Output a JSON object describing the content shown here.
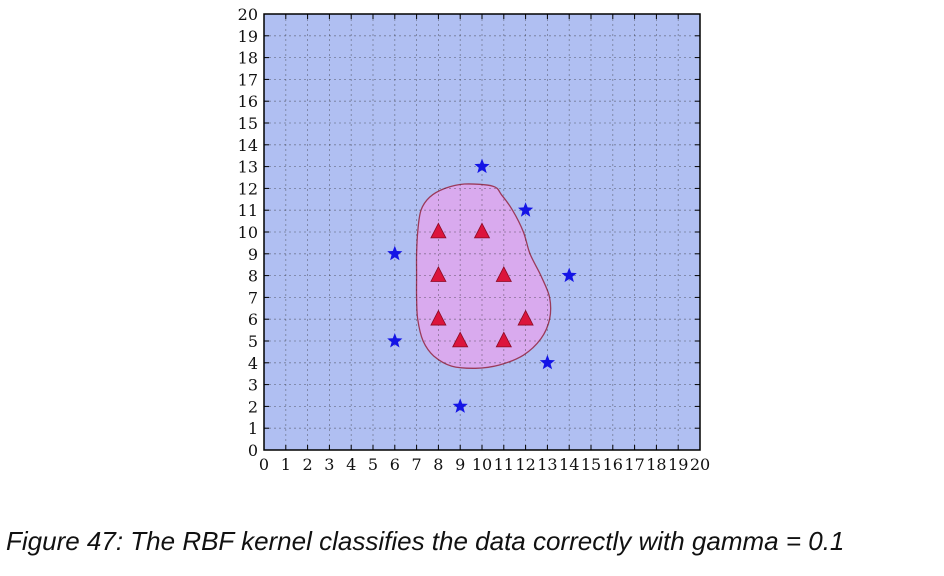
{
  "chart_data": {
    "type": "scatter",
    "title": "",
    "xlabel": "",
    "ylabel": "",
    "xlim": [
      0,
      20
    ],
    "ylim": [
      0,
      20
    ],
    "x_ticks": [
      "0",
      "1",
      "2",
      "3",
      "4",
      "5",
      "6",
      "7",
      "8",
      "9",
      "10",
      "11",
      "12",
      "13",
      "14",
      "15",
      "16",
      "17",
      "18",
      "19",
      "20"
    ],
    "y_ticks": [
      "0",
      "1",
      "2",
      "3",
      "4",
      "5",
      "6",
      "7",
      "8",
      "9",
      "10",
      "11",
      "12",
      "13",
      "14",
      "15",
      "16",
      "17",
      "18",
      "19",
      "20"
    ],
    "grid": true,
    "background_color": "#b0bff2",
    "decision_region": {
      "fill_color": "#d9aaee",
      "edge_color": "#9b3a5a",
      "boundary": [
        [
          10.5,
          12.1
        ],
        [
          9.2,
          12.2
        ],
        [
          8.3,
          12.0
        ],
        [
          7.6,
          11.6
        ],
        [
          7.2,
          11.0
        ],
        [
          7.05,
          10.0
        ],
        [
          7.0,
          9.0
        ],
        [
          7.0,
          8.0
        ],
        [
          7.0,
          7.0
        ],
        [
          7.05,
          6.0
        ],
        [
          7.3,
          5.0
        ],
        [
          7.8,
          4.3
        ],
        [
          8.6,
          3.85
        ],
        [
          9.7,
          3.75
        ],
        [
          10.8,
          3.9
        ],
        [
          11.9,
          4.35
        ],
        [
          12.7,
          5.1
        ],
        [
          13.1,
          6.0
        ],
        [
          13.1,
          7.0
        ],
        [
          12.7,
          8.0
        ],
        [
          12.2,
          9.0
        ],
        [
          11.9,
          10.0
        ],
        [
          11.4,
          11.0
        ],
        [
          10.9,
          11.7
        ]
      ]
    },
    "series": [
      {
        "marker": "triangle",
        "color": "#dc143c",
        "points": [
          [
            8,
            10
          ],
          [
            10,
            10
          ],
          [
            8,
            8
          ],
          [
            11,
            8
          ],
          [
            8,
            6
          ],
          [
            12,
            6
          ],
          [
            9,
            5
          ],
          [
            11,
            5
          ]
        ]
      },
      {
        "marker": "star",
        "color": "#1414e6",
        "points": [
          [
            10,
            13
          ],
          [
            12,
            11
          ],
          [
            6,
            9
          ],
          [
            14,
            8
          ],
          [
            6,
            5
          ],
          [
            13,
            4
          ],
          [
            9,
            2
          ]
        ]
      }
    ]
  },
  "caption": "Figure 47: The RBF kernel classifies the data correctly with gamma = 0.1"
}
